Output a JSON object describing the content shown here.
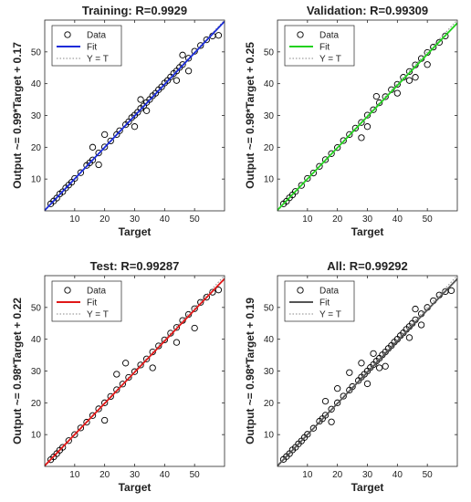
{
  "chart_data": [
    {
      "type": "scatter",
      "title": "Training: R=0.9929",
      "xlabel": "Target",
      "ylabel": "Output ~= 0.99*Target + 0.17",
      "xlim": [
        0,
        60
      ],
      "ylim": [
        0,
        60
      ],
      "xticks": [
        10,
        20,
        30,
        40,
        50
      ],
      "yticks": [
        10,
        20,
        30,
        40,
        50
      ],
      "fit": {
        "slope": 0.99,
        "intercept": 0.17,
        "color": "#1a2bd9"
      },
      "legend": [
        "Data",
        "Fit",
        "Y = T"
      ],
      "legend_position": "top-left",
      "series": [
        {
          "name": "Data",
          "x": [
            2,
            3,
            4,
            5,
            6,
            7,
            8,
            9,
            10,
            12,
            14,
            15,
            16,
            18,
            20,
            22,
            24,
            25,
            27,
            28,
            29,
            30,
            31,
            32,
            33,
            34,
            35,
            36,
            37,
            38,
            39,
            40,
            41,
            42,
            43,
            44,
            45,
            46,
            48,
            50,
            52,
            54,
            56,
            58,
            30,
            32,
            34,
            44,
            46,
            48,
            16,
            18,
            20
          ],
          "y": [
            2.2,
            3.1,
            4.0,
            5.3,
            6.0,
            7.2,
            8.1,
            9.0,
            10.2,
            12.0,
            14.3,
            15.1,
            16.0,
            18.2,
            20.1,
            22.0,
            24.0,
            25.2,
            27.1,
            28.0,
            29.3,
            30.1,
            31.0,
            32.2,
            33.0,
            34.1,
            35.0,
            36.2,
            37.0,
            38.1,
            39.0,
            40.2,
            41.0,
            42.1,
            43.2,
            44.0,
            45.1,
            46.0,
            48.0,
            50.2,
            52.0,
            53.8,
            55.0,
            55.2,
            26.5,
            35.0,
            31.5,
            41.0,
            49.0,
            44.0,
            20.0,
            14.5,
            24.0
          ]
        }
      ]
    },
    {
      "type": "scatter",
      "title": "Validation: R=0.99309",
      "xlabel": "Target",
      "ylabel": "Output ~= 0.98*Target + 0.25",
      "xlim": [
        0,
        60
      ],
      "ylim": [
        0,
        60
      ],
      "xticks": [
        10,
        20,
        30,
        40,
        50
      ],
      "yticks": [
        10,
        20,
        30,
        40,
        50
      ],
      "fit": {
        "slope": 0.98,
        "intercept": 0.25,
        "color": "#22d11e"
      },
      "legend": [
        "Data",
        "Fit",
        "Y = T"
      ],
      "legend_position": "top-left",
      "series": [
        {
          "name": "Data",
          "x": [
            2,
            3,
            4,
            5,
            6,
            8,
            10,
            12,
            14,
            16,
            18,
            20,
            22,
            24,
            26,
            28,
            30,
            32,
            34,
            36,
            38,
            40,
            42,
            44,
            46,
            48,
            50,
            52,
            54,
            56,
            28,
            30,
            33,
            40,
            44,
            46,
            50
          ],
          "y": [
            2.2,
            3.0,
            4.1,
            5.0,
            6.1,
            8.0,
            10.2,
            11.9,
            14.0,
            16.1,
            18.0,
            19.9,
            22.1,
            24.0,
            26.0,
            27.8,
            30.1,
            31.8,
            34.0,
            35.9,
            38.1,
            39.8,
            42.0,
            43.8,
            45.9,
            47.9,
            49.8,
            51.5,
            53.0,
            55.0,
            23.0,
            26.5,
            36.0,
            37.0,
            41.0,
            42.0,
            46.0
          ]
        }
      ]
    },
    {
      "type": "scatter",
      "title": "Test: R=0.99287",
      "xlabel": "Target",
      "ylabel": "Output ~= 0.98*Target + 0.22",
      "xlim": [
        0,
        60
      ],
      "ylim": [
        0,
        60
      ],
      "xticks": [
        10,
        20,
        30,
        40,
        50
      ],
      "yticks": [
        10,
        20,
        30,
        40,
        50
      ],
      "fit": {
        "slope": 0.98,
        "intercept": 0.22,
        "color": "#e01818"
      },
      "legend": [
        "Data",
        "Fit",
        "Y = T"
      ],
      "legend_position": "top-left",
      "series": [
        {
          "name": "Data",
          "x": [
            2,
            3,
            4,
            5,
            6,
            8,
            10,
            12,
            14,
            16,
            18,
            20,
            22,
            24,
            26,
            28,
            30,
            32,
            34,
            36,
            38,
            40,
            42,
            44,
            46,
            48,
            50,
            52,
            54,
            56,
            58,
            20,
            24,
            27,
            36,
            44,
            50
          ],
          "y": [
            2.1,
            3.0,
            4.0,
            5.1,
            6.0,
            8.1,
            10.0,
            12.1,
            13.9,
            16.0,
            18.1,
            20.0,
            22.0,
            24.1,
            25.9,
            28.0,
            29.8,
            31.9,
            33.8,
            36.0,
            37.9,
            39.8,
            41.9,
            43.7,
            45.9,
            47.8,
            49.6,
            51.6,
            53.2,
            54.8,
            55.5,
            14.5,
            29.0,
            32.5,
            31.0,
            39.0,
            43.5
          ]
        }
      ]
    },
    {
      "type": "scatter",
      "title": "All: R=0.99292",
      "xlabel": "Target",
      "ylabel": "Output ~= 0.98*Target + 0.19",
      "xlim": [
        0,
        60
      ],
      "ylim": [
        0,
        60
      ],
      "xticks": [
        10,
        20,
        30,
        40,
        50
      ],
      "yticks": [
        10,
        20,
        30,
        40,
        50
      ],
      "fit": {
        "slope": 0.98,
        "intercept": 0.19,
        "color": "#555555"
      },
      "legend": [
        "Data",
        "Fit",
        "Y = T"
      ],
      "legend_position": "top-left",
      "series": [
        {
          "name": "Data",
          "x": [
            2,
            3,
            4,
            5,
            6,
            7,
            8,
            9,
            10,
            12,
            14,
            15,
            16,
            18,
            20,
            22,
            24,
            25,
            27,
            28,
            29,
            30,
            31,
            32,
            33,
            34,
            35,
            36,
            37,
            38,
            39,
            40,
            41,
            42,
            43,
            44,
            45,
            46,
            48,
            50,
            52,
            54,
            56,
            58,
            30,
            32,
            34,
            44,
            46,
            48,
            16,
            18,
            20,
            24,
            28,
            36
          ],
          "y": [
            2.2,
            3.1,
            4.0,
            5.2,
            6.0,
            7.1,
            8.0,
            9.1,
            10.1,
            12.0,
            14.2,
            15.0,
            16.1,
            18.0,
            20.0,
            22.1,
            24.0,
            25.1,
            27.0,
            28.1,
            29.0,
            30.0,
            31.1,
            32.0,
            33.1,
            34.0,
            35.1,
            36.0,
            37.1,
            38.0,
            39.1,
            40.0,
            41.1,
            42.0,
            43.1,
            44.0,
            45.0,
            46.1,
            48.0,
            50.0,
            52.1,
            53.9,
            55.0,
            55.3,
            26.0,
            35.5,
            31.0,
            40.5,
            49.5,
            44.5,
            20.5,
            14.0,
            24.5,
            29.5,
            32.5,
            31.5
          ]
        }
      ]
    }
  ]
}
